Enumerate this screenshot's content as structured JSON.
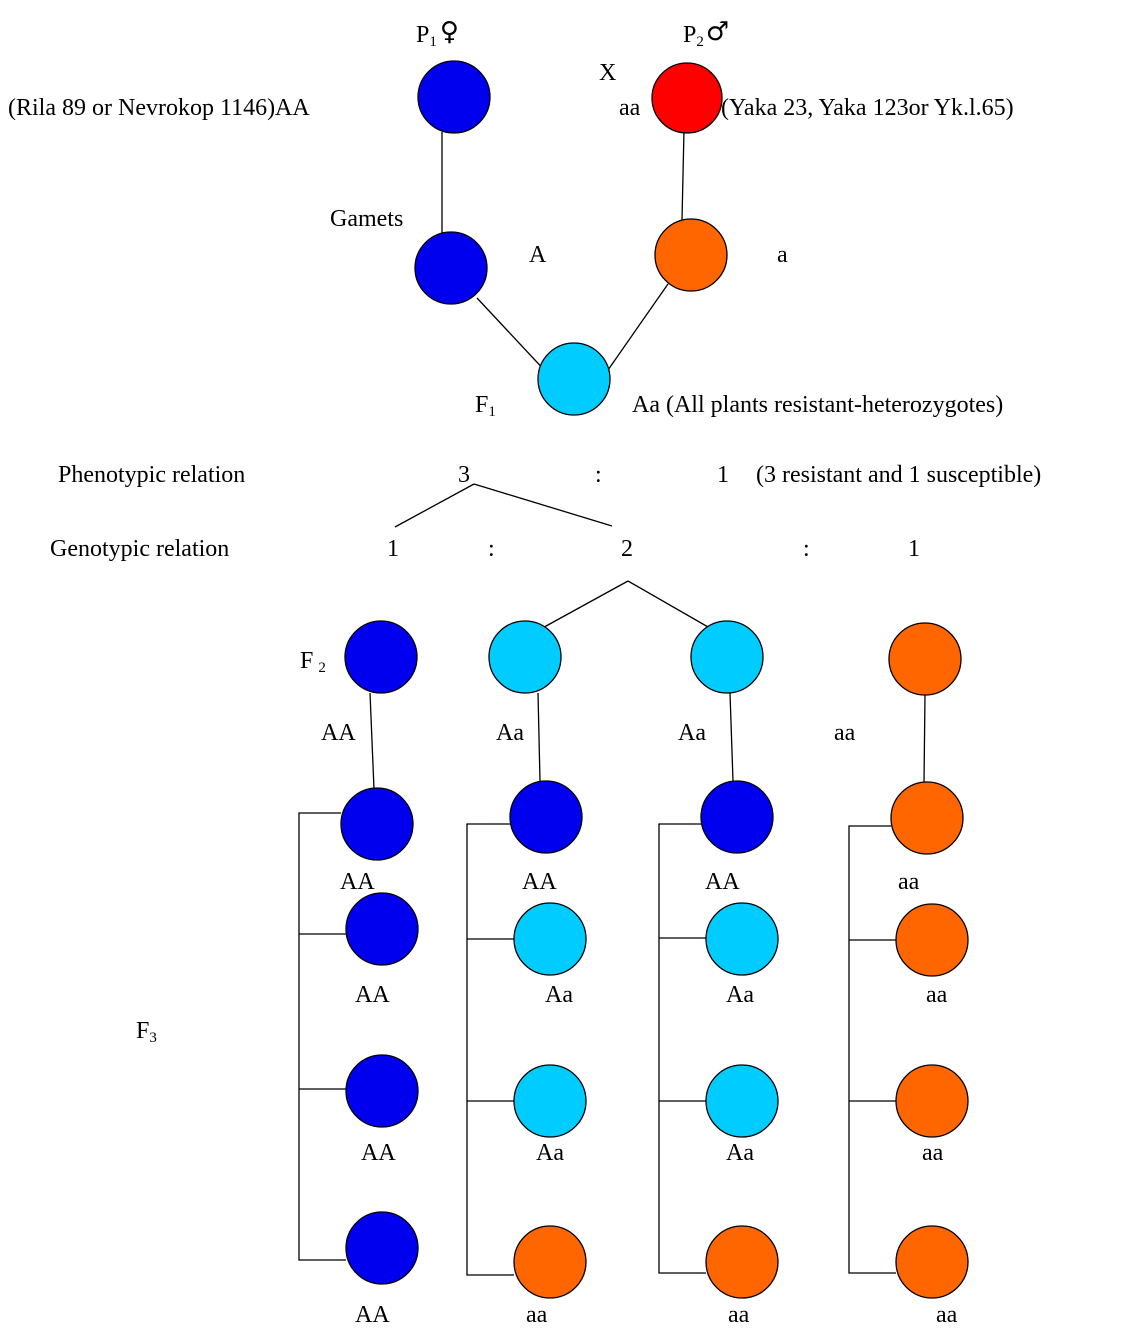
{
  "colors": {
    "homozygous_dominant": "#0000ee",
    "heterozygous": "#00ccff",
    "homozygous_recessive": "#ff6600",
    "p2_parent": "#ff0000"
  },
  "p1": {
    "letter": "P",
    "sub": "1",
    "sex_symbol": "♀",
    "left_label": "(Rila 89 or Nevrokop 1146)AA",
    "fill": "homozygous_dominant"
  },
  "cross_symbol": "X",
  "p2": {
    "letter": "P",
    "sub": "2",
    "sex_symbol": "♂",
    "genotype": "aa",
    "right_label": "(Yaka 23, Yaka 123or Yk.l.65)",
    "fill": "p2_parent"
  },
  "gametes": {
    "label": "Gamets",
    "left_allele": "A",
    "right_allele": "a"
  },
  "f1": {
    "letter": "F",
    "sub": "1",
    "label": "Aa (All plants resistant-heterozygotes)"
  },
  "phenotypic": {
    "label": "Phenotypic relation",
    "left": "3",
    "colon": ":",
    "right": "1",
    "note": "(3 resistant and 1 susceptible)"
  },
  "genotypic": {
    "label": "Genotypic relation",
    "values": [
      "1",
      "2",
      "1"
    ],
    "colon": ":"
  },
  "f2": {
    "letter": "F",
    "sub": "2",
    "genotypes": [
      "AA",
      "Aa",
      "Aa",
      "aa"
    ]
  },
  "f3": {
    "letter": "F",
    "sub": "3",
    "columns": [
      [
        "AA",
        "AA",
        "AA",
        "AA"
      ],
      [
        "AA",
        "Aa",
        "Aa",
        "aa"
      ],
      [
        "AA",
        "Aa",
        "Aa",
        "aa"
      ],
      [
        "aa",
        "aa",
        "aa",
        "aa"
      ]
    ]
  }
}
